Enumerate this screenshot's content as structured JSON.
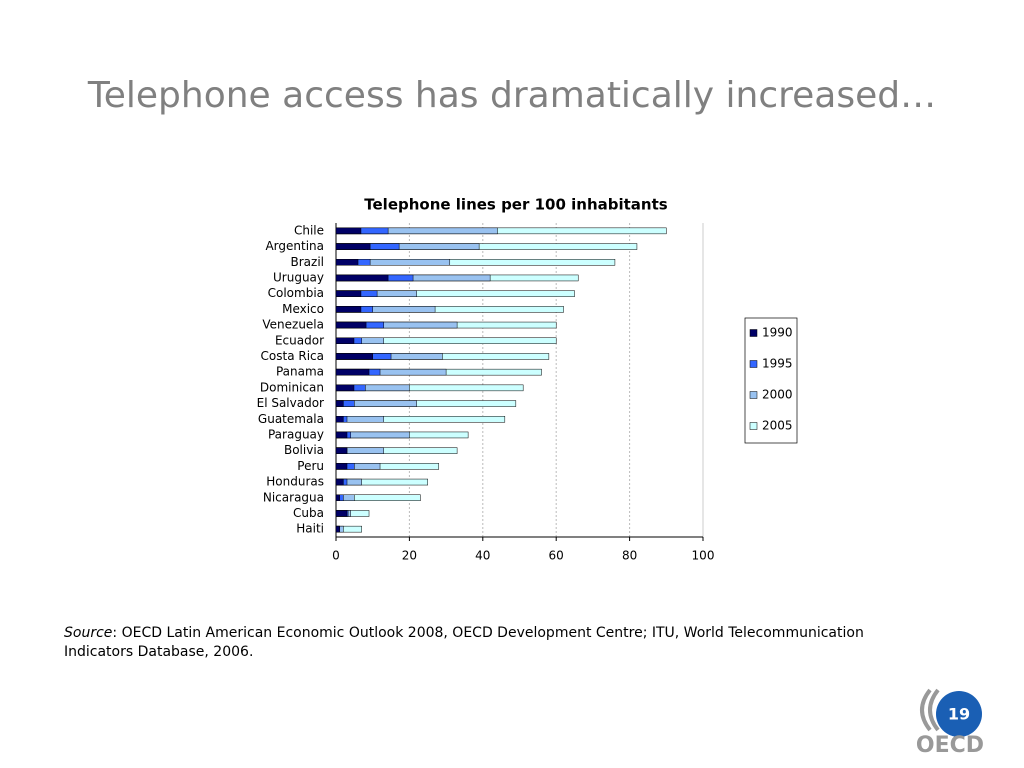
{
  "slide_title": "Telephone access has dramatically increased…",
  "source": {
    "label": "Source",
    "text": ": OECD Latin American Economic Outlook 2008, OECD Development Centre; ITU, World Telecommunication",
    "text2": "Indicators Database, 2006."
  },
  "page_number": "19",
  "logo": "OECD",
  "chart_data": {
    "type": "bar",
    "orientation": "horizontal",
    "overlay": true,
    "title": "Telephone lines per 100 inhabitants",
    "categories": [
      "Chile",
      "Argentina",
      "Brazil",
      "Uruguay",
      "Colombia",
      "Mexico",
      "Venezuela",
      "Ecuador",
      "Costa Rica",
      "Panama",
      "Dominican",
      "El Salvador",
      "Guatemala",
      "Paraguay",
      "Bolivia",
      "Peru",
      "Honduras",
      "Nicaragua",
      "Cuba",
      "Haiti"
    ],
    "series": [
      {
        "name": "1990",
        "color": "#000066",
        "values": [
          6.8,
          9.3,
          6,
          14.2,
          6.8,
          6.8,
          8.2,
          4.9,
          10,
          9,
          4.9,
          2,
          2,
          3,
          3,
          3,
          2,
          1,
          3,
          1
        ]
      },
      {
        "name": "1995",
        "color": "#3366ff",
        "values": [
          14.2,
          17.2,
          9.3,
          21,
          11.2,
          10,
          13,
          7,
          15,
          12,
          8,
          5,
          3,
          4,
          3,
          5,
          3,
          2,
          3.3,
          1
        ]
      },
      {
        "name": "2000",
        "color": "#99c2f0",
        "values": [
          44,
          39,
          31,
          42,
          22,
          27,
          33,
          13,
          29,
          30,
          20,
          22,
          13,
          20,
          13,
          12,
          7,
          5,
          4,
          2
        ]
      },
      {
        "name": "2005",
        "color": "#ccffff",
        "values": [
          90,
          82,
          76,
          66,
          65,
          62,
          60,
          60,
          58,
          56,
          51,
          49,
          46,
          36,
          33,
          28,
          25,
          23,
          9,
          7
        ]
      }
    ],
    "xlim": [
      0,
      100
    ],
    "xticks": [
      0,
      20,
      40,
      60,
      80,
      100
    ],
    "grid": true,
    "legend": "right"
  }
}
